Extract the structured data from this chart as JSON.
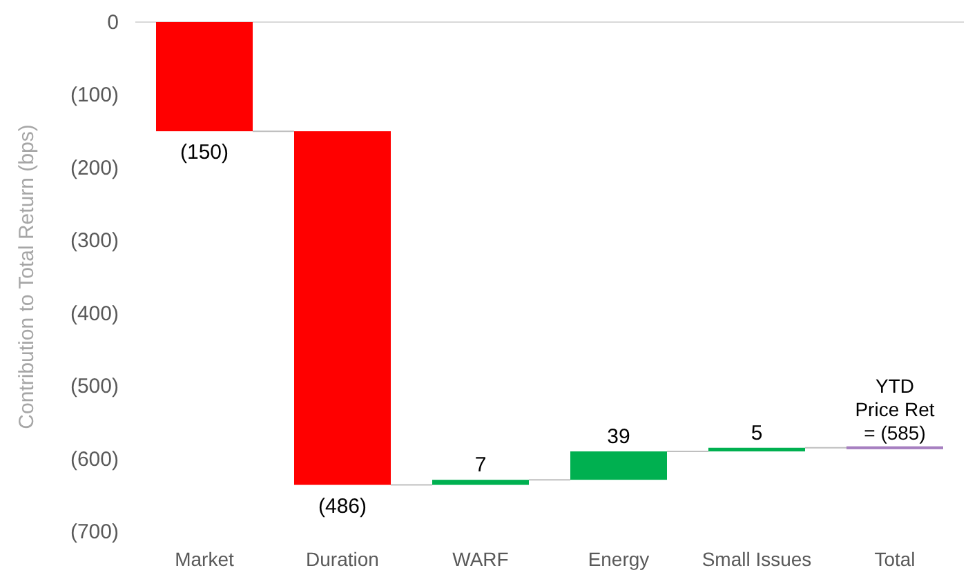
{
  "chart_data": {
    "type": "bar",
    "ylabel": "Contribution to Total Return (bps)",
    "categories": [
      "Market",
      "Duration",
      "WARF",
      "Energy",
      "Small Issues",
      "Total"
    ],
    "values": [
      -150,
      -486,
      7,
      39,
      5,
      -4
    ],
    "base": [
      0,
      -150,
      -636,
      -629,
      -590,
      -583
    ],
    "colors": [
      "#ff0000",
      "#ff0000",
      "#00b050",
      "#00b050",
      "#00b050",
      "#a67fc0"
    ],
    "value_labels": [
      "(150)",
      "(486)",
      "7",
      "39",
      "5",
      null
    ],
    "ylim": [
      -700,
      0
    ],
    "yticks": [
      {
        "value": 0,
        "label": "0"
      },
      {
        "value": -100,
        "label": "(100)"
      },
      {
        "value": -200,
        "label": "(200)"
      },
      {
        "value": -300,
        "label": "(300)"
      },
      {
        "value": -400,
        "label": "(400)"
      },
      {
        "value": -500,
        "label": "(500)"
      },
      {
        "value": -600,
        "label": "(600)"
      },
      {
        "value": -700,
        "label": "(700)"
      }
    ],
    "annotations": [
      {
        "text": "YTD\nPrice Ret\n= (585)",
        "x": "Total",
        "y": -585
      }
    ],
    "grid": false
  }
}
